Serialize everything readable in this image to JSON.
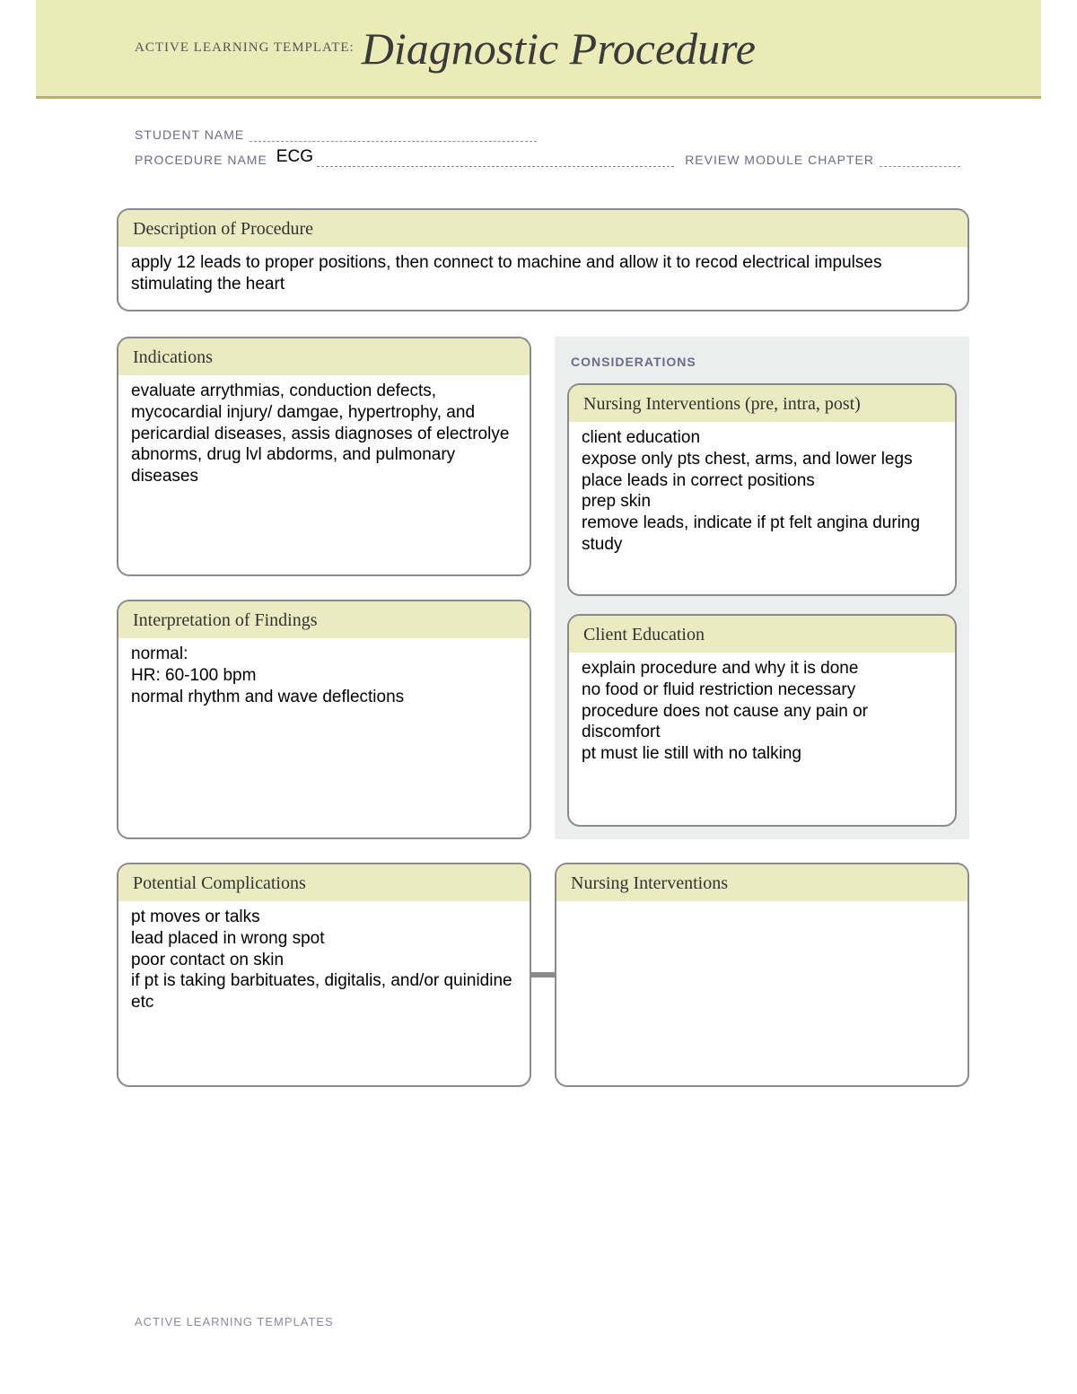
{
  "banner": {
    "prefix": "ACTIVE LEARNING TEMPLATE:",
    "title": "Diagnostic Procedure"
  },
  "meta": {
    "student_name_label": "STUDENT NAME",
    "student_name_value": "",
    "procedure_name_label": "PROCEDURE NAME",
    "procedure_name_value": "ECG",
    "review_label": "REVIEW MODULE CHAPTER",
    "review_value": ""
  },
  "boxes": {
    "description": {
      "title": "Description of Procedure",
      "body": "apply 12 leads to proper positions, then connect to machine and allow it to recod electrical impulses stimulating the heart"
    },
    "indications": {
      "title": "Indications",
      "body": "evaluate arrythmias, conduction defects, mycocardial injury/ damgae, hypertrophy, and pericardial diseases, assis diagnoses of electrolye abnorms, drug lvl abdorms, and pulmonary diseases"
    },
    "considerations_label": "CONSIDERATIONS",
    "nursing_pre": {
      "title": "Nursing Interventions (pre, intra, post)",
      "body": "client education\nexpose only pts chest, arms, and lower legs\nplace leads in correct positions\nprep skin\nremove leads, indicate if pt felt angina during study"
    },
    "interpretation": {
      "title": "Interpretation of Findings",
      "body": "normal:\nHR: 60-100 bpm\nnormal rhythm and wave deflections"
    },
    "client_education": {
      "title": "Client Education",
      "body": "explain procedure and why it is done\nno food or fluid restriction necessary\nprocedure does not cause any pain or discomfort\npt must lie still with no talking"
    },
    "complications": {
      "title": "Potential Complications",
      "body": "pt moves or talks\nlead placed in wrong spot\npoor contact on skin\nif pt is taking barbituates, digitalis, and/or quinidine etc"
    },
    "nursing_interventions": {
      "title": "Nursing Interventions",
      "body": ""
    }
  },
  "footer": "ACTIVE LEARNING TEMPLATES",
  "colors": {
    "banner_bg": "#eaebb7",
    "banner_rule": "#b5b84a",
    "box_header_bg": "#eaebc0",
    "box_border": "#8a8a8a",
    "considerations_bg": "#eceded",
    "meta_text": "#6b6b8a"
  }
}
